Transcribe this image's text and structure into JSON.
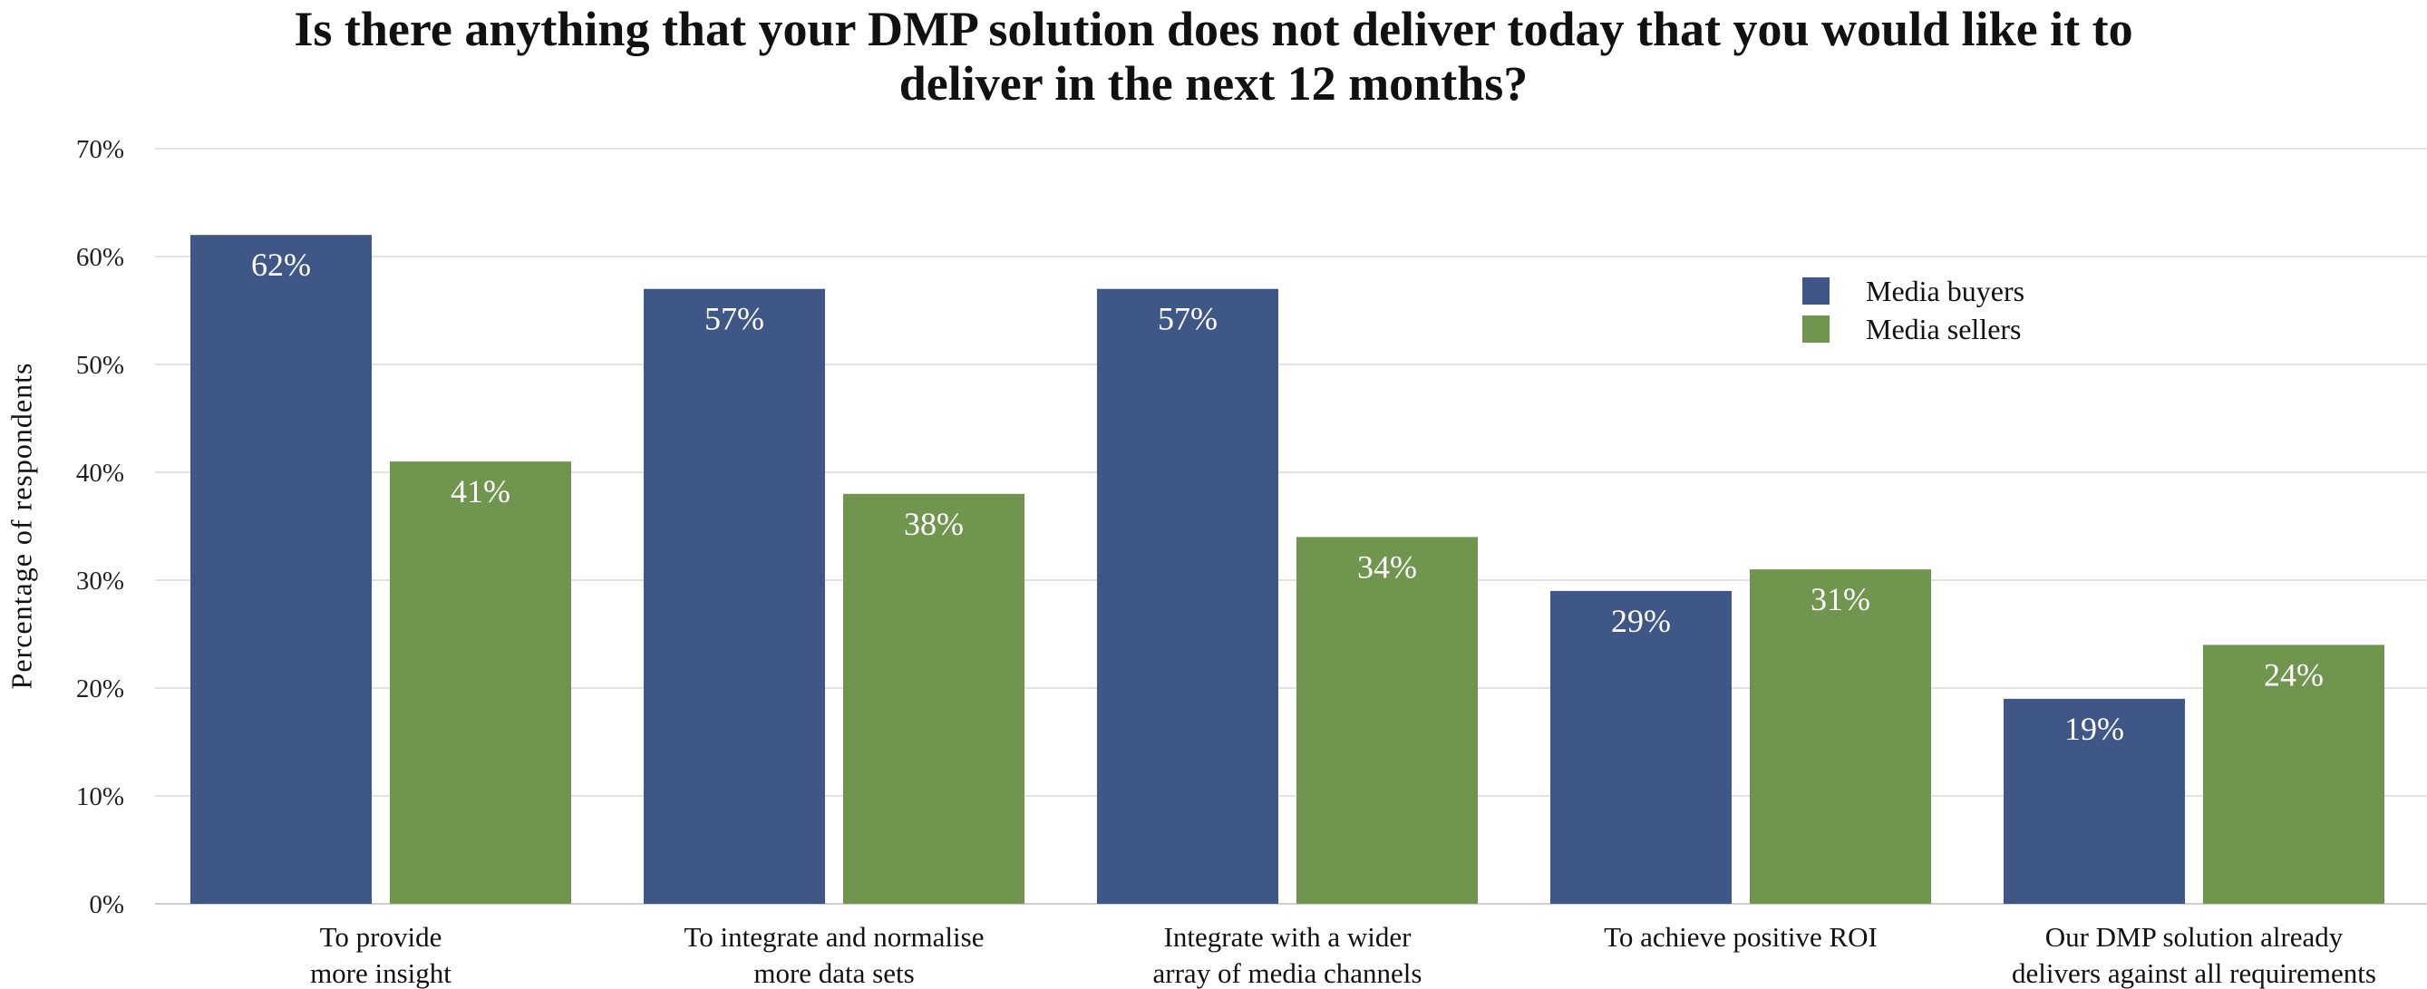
{
  "chart_data": {
    "type": "bar",
    "title": "Is there anything that your DMP solution does not deliver today that you would like it to deliver in the next 12 months?",
    "title_lines": [
      "Is there anything that your DMP solution does not deliver today that you would like it to",
      "deliver in the next 12 months?"
    ],
    "xlabel": "",
    "ylabel": "Percentage of respondents",
    "ylim": [
      0,
      70
    ],
    "yticks": [
      "0%",
      "10%",
      "20%",
      "30%",
      "40%",
      "50%",
      "60%",
      "70%"
    ],
    "grid": true,
    "legend_position": "top-right",
    "categories": [
      [
        "To provide",
        "more insight"
      ],
      [
        "To integrate and normalise",
        "more data sets"
      ],
      [
        "Integrate with a wider",
        "array of media channels"
      ],
      [
        "To achieve positive ROI"
      ],
      [
        "Our DMP solution already",
        "delivers against all requirements"
      ]
    ],
    "series": [
      {
        "name": "Media buyers",
        "color": "#3F5787",
        "values": [
          62,
          57,
          57,
          29,
          19
        ],
        "labels": [
          "62%",
          "57%",
          "57%",
          "29%",
          "19%"
        ]
      },
      {
        "name": "Media sellers",
        "color": "#6F954E",
        "values": [
          41,
          38,
          34,
          31,
          24
        ],
        "labels": [
          "41%",
          "38%",
          "34%",
          "31%",
          "24%"
        ]
      }
    ]
  }
}
